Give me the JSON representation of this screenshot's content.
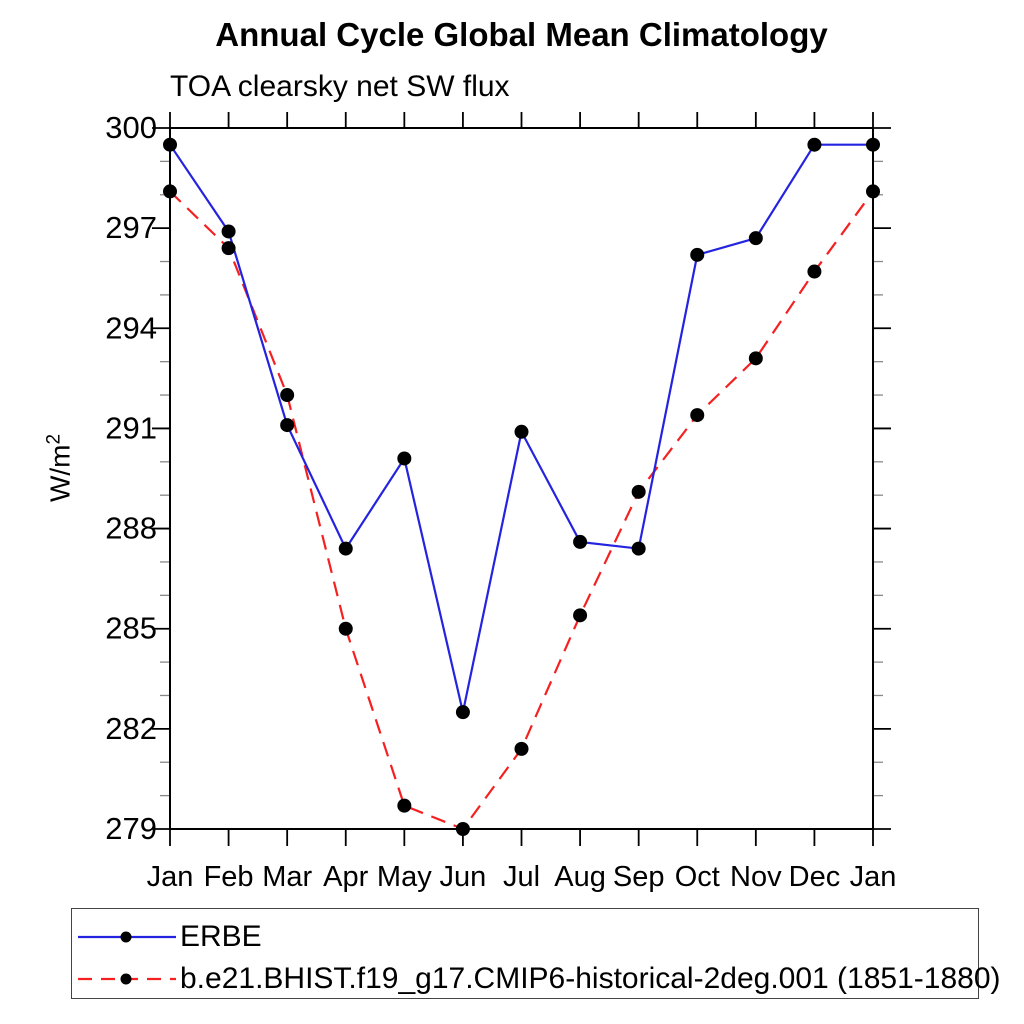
{
  "title": "Annual Cycle Global Mean Climatology",
  "subtitle": "TOA clearsky net SW flux",
  "y_axis": {
    "label_base": "W/m",
    "label_exp": "2"
  },
  "chart_data": {
    "type": "line",
    "categories": [
      "Jan",
      "Feb",
      "Mar",
      "Apr",
      "May",
      "Jun",
      "Jul",
      "Aug",
      "Sep",
      "Oct",
      "Nov",
      "Dec",
      "Jan"
    ],
    "xlabel": "",
    "ylabel": "W/m^2",
    "ylim": [
      279,
      300
    ],
    "yticks_major": [
      279,
      282,
      285,
      288,
      291,
      294,
      297,
      300
    ],
    "ytick_minor_step": 1,
    "grid": false,
    "legend_position": "bottom",
    "series": [
      {
        "name": "ERBE",
        "line_style": "solid",
        "color": "#2424e0",
        "marker": "circle",
        "marker_color": "#000000",
        "values": [
          299.5,
          296.9,
          291.1,
          287.4,
          290.1,
          282.5,
          290.9,
          287.6,
          287.4,
          296.2,
          296.7,
          299.5,
          299.5
        ]
      },
      {
        "name": "b.e21.BHIST.f19_g17.CMIP6-historical-2deg.001 (1851-1880)",
        "line_style": "dashed",
        "color": "#f52020",
        "marker": "circle",
        "marker_color": "#000000",
        "values": [
          298.1,
          296.4,
          292.0,
          285.0,
          279.7,
          279.0,
          281.4,
          285.4,
          289.1,
          291.4,
          293.1,
          295.7,
          298.1
        ]
      }
    ]
  },
  "style_colors": {
    "axis": "#000000",
    "minor_tick": "#888888",
    "background": "#ffffff",
    "legend_border": "#444444"
  }
}
